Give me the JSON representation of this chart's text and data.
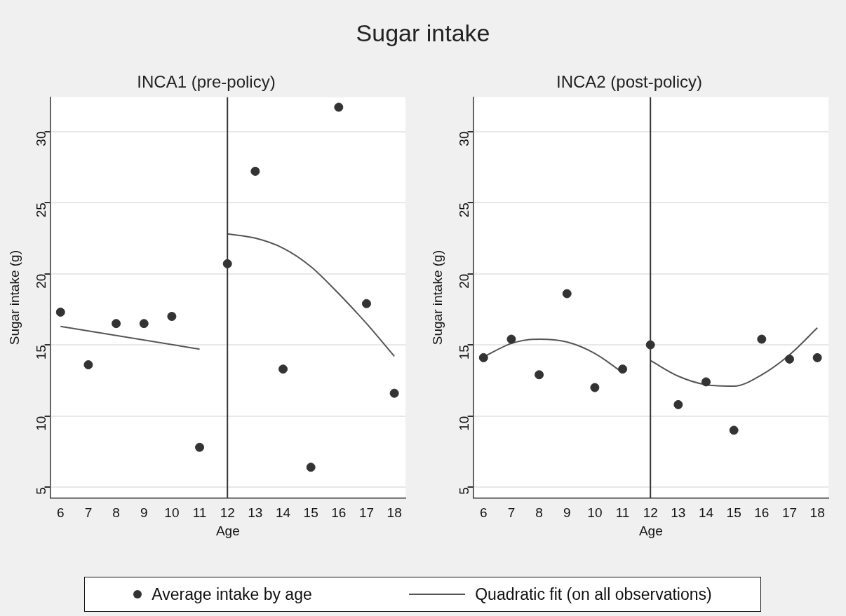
{
  "chart_data": [
    {
      "type": "scatter",
      "title": "Sugar intake",
      "subtitle": "INCA1 (pre-policy)",
      "xlabel": "Age",
      "ylabel": "Sugar intake (g)",
      "xlim": [
        5.63,
        18.4
      ],
      "xticks": [
        6,
        7,
        8,
        9,
        10,
        11,
        12,
        13,
        14,
        15,
        16,
        17,
        18
      ],
      "ylim": [
        4.25,
        32.4
      ],
      "yticks": [
        5,
        10,
        15,
        20,
        25,
        30
      ],
      "grid": "y",
      "legend": "bottom",
      "ref_lines": [
        {
          "axis": "x",
          "value": 12,
          "color": "#333333"
        }
      ],
      "series": [
        {
          "name": "Average intake by age",
          "marker": "circle",
          "color": "#333333",
          "x": [
            6,
            7,
            8,
            9,
            10,
            11,
            12,
            13,
            14,
            15,
            16,
            17,
            18
          ],
          "values": [
            17.3,
            13.6,
            16.5,
            16.5,
            17.0,
            7.8,
            20.7,
            27.2,
            13.3,
            6.4,
            31.7,
            17.9,
            11.6
          ]
        },
        {
          "name": "Quadratic fit (on all observations)",
          "type": "line",
          "marker": "none",
          "color": "#555555",
          "line_style": "solid",
          "x": [
            6,
            11
          ],
          "values": [
            16.3,
            14.7
          ]
        },
        {
          "type": "line",
          "marker": "none",
          "color": "#555555",
          "line_style": "solid",
          "x": [
            12,
            13,
            14,
            15,
            16,
            17,
            18
          ],
          "values": [
            22.8,
            22.5,
            21.8,
            20.5,
            18.6,
            16.5,
            14.2
          ]
        }
      ]
    },
    {
      "type": "scatter",
      "subtitle": "INCA2 (post-policy)",
      "xlabel": "Age",
      "ylabel": "Sugar intake (g)",
      "xlim": [
        5.63,
        18.4
      ],
      "xticks": [
        6,
        7,
        8,
        9,
        10,
        11,
        12,
        13,
        14,
        15,
        16,
        17,
        18
      ],
      "ylim": [
        4.25,
        32.4
      ],
      "yticks": [
        5,
        10,
        15,
        20,
        25,
        30
      ],
      "grid": "y",
      "ref_lines": [
        {
          "axis": "x",
          "value": 12,
          "color": "#333333"
        }
      ],
      "series": [
        {
          "marker": "circle",
          "color": "#333333",
          "x": [
            6,
            7,
            8,
            9,
            10,
            11,
            12,
            13,
            14,
            15,
            16,
            17,
            18
          ],
          "values": [
            14.1,
            15.4,
            12.9,
            18.6,
            12.0,
            13.3,
            15.0,
            10.8,
            12.4,
            9.0,
            15.4,
            14.0,
            14.1
          ]
        },
        {
          "type": "line",
          "marker": "none",
          "color": "#555555",
          "line_style": "solid",
          "x": [
            6,
            7,
            8,
            9,
            10,
            11
          ],
          "values": [
            14.15,
            15.1,
            15.4,
            15.2,
            14.4,
            13.05
          ]
        },
        {
          "type": "line",
          "marker": "none",
          "color": "#555555",
          "line_style": "solid",
          "x": [
            12,
            13,
            14,
            15,
            16,
            17,
            18
          ],
          "values": [
            13.9,
            12.8,
            12.2,
            12.1,
            12.9,
            14.3,
            16.2
          ]
        }
      ]
    }
  ]
}
